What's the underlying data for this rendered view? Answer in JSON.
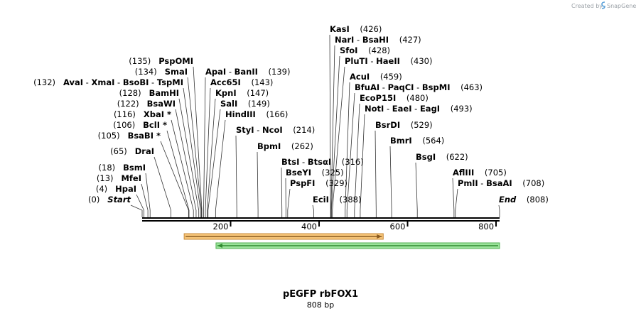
{
  "credit": "Created by",
  "credit_brand": "SnapGene",
  "plasmid": {
    "name": "pEGFP rbFOX1",
    "size_label": "808 bp",
    "length": 808
  },
  "axis_ticks": [
    {
      "value": 200,
      "label": "200"
    },
    {
      "value": 400,
      "label": "400"
    },
    {
      "value": 600,
      "label": "600"
    },
    {
      "value": 800,
      "label": "800"
    }
  ],
  "features": [
    {
      "name": "orange-feature-arrow",
      "start": 95,
      "end": 545,
      "direction": "forward",
      "fill": "#f7c67a",
      "stroke": "#c78a3a",
      "line": "#8a5a1f"
    },
    {
      "name": "green-feature-arrow",
      "start": 167,
      "end": 808,
      "direction": "reverse",
      "fill": "#9be39b",
      "stroke": "#55b055",
      "line": "#2f8a2f"
    }
  ],
  "sites": [
    {
      "pos_label": "(0)",
      "enzymes": [
        "Start"
      ],
      "italic": true,
      "pos": 0
    },
    {
      "pos_label": "(4)",
      "enzymes": [
        "HpaI"
      ],
      "pos": 4
    },
    {
      "pos_label": "(13)",
      "enzymes": [
        "MfeI"
      ],
      "pos": 13
    },
    {
      "pos_label": "(18)",
      "enzymes": [
        "BsmI"
      ],
      "pos": 18
    },
    {
      "pos_label": "(65)",
      "enzymes": [
        "DraI"
      ],
      "pos": 65
    },
    {
      "pos_label": "(105)",
      "enzymes": [
        "BsaBI *"
      ],
      "pos": 105
    },
    {
      "pos_label": "(106)",
      "enzymes": [
        "BclI *"
      ],
      "pos": 106
    },
    {
      "pos_label": "(116)",
      "enzymes": [
        "XbaI *"
      ],
      "pos": 116
    },
    {
      "pos_label": "(122)",
      "enzymes": [
        "BsaWI"
      ],
      "pos": 122
    },
    {
      "pos_label": "(128)",
      "enzymes": [
        "BamHI"
      ],
      "pos": 128
    },
    {
      "pos_label": "(132)",
      "enzymes": [
        "AvaI",
        "XmaI",
        "BsoBI",
        "TspMI"
      ],
      "pos": 132
    },
    {
      "pos_label": "(134)",
      "enzymes": [
        "SmaI"
      ],
      "pos": 134
    },
    {
      "pos_label": "(135)",
      "enzymes": [
        "PspOMI"
      ],
      "pos": 135
    },
    {
      "pos_label": "(139)",
      "enzymes": [
        "ApaI",
        "BanII"
      ],
      "pos": 139
    },
    {
      "pos_label": "(143)",
      "enzymes": [
        "Acc65I"
      ],
      "pos": 143
    },
    {
      "pos_label": "(147)",
      "enzymes": [
        "KpnI"
      ],
      "pos": 147
    },
    {
      "pos_label": "(149)",
      "enzymes": [
        "SalI"
      ],
      "pos": 149
    },
    {
      "pos_label": "(166)",
      "enzymes": [
        "HindIII"
      ],
      "pos": 166
    },
    {
      "pos_label": "(214)",
      "enzymes": [
        "StyI",
        "NcoI"
      ],
      "pos": 214
    },
    {
      "pos_label": "(262)",
      "enzymes": [
        "BpmI"
      ],
      "pos": 262
    },
    {
      "pos_label": "(316)",
      "enzymes": [
        "BtsI",
        "BtsαI"
      ],
      "pos": 316
    },
    {
      "pos_label": "(325)",
      "enzymes": [
        "BseYI"
      ],
      "pos": 325
    },
    {
      "pos_label": "(329)",
      "enzymes": [
        "PspFI"
      ],
      "pos": 329
    },
    {
      "pos_label": "(388)",
      "enzymes": [
        "EciI"
      ],
      "pos": 388
    },
    {
      "pos_label": "(426)",
      "enzymes": [
        "KasI"
      ],
      "pos": 426
    },
    {
      "pos_label": "(427)",
      "enzymes": [
        "NarI",
        "BsaHI"
      ],
      "pos": 427
    },
    {
      "pos_label": "(428)",
      "enzymes": [
        "SfoI"
      ],
      "pos": 428
    },
    {
      "pos_label": "(430)",
      "enzymes": [
        "PluTI",
        "HaeII"
      ],
      "pos": 430
    },
    {
      "pos_label": "(459)",
      "enzymes": [
        "AcuI"
      ],
      "pos": 459
    },
    {
      "pos_label": "(463)",
      "enzymes": [
        "BfuAI",
        "PaqCI",
        "BspMI"
      ],
      "pos": 463
    },
    {
      "pos_label": "(480)",
      "enzymes": [
        "EcoP15I"
      ],
      "pos": 480
    },
    {
      "pos_label": "(493)",
      "enzymes": [
        "NotI",
        "EaeI",
        "EagI"
      ],
      "pos": 493
    },
    {
      "pos_label": "(529)",
      "enzymes": [
        "BsrDI"
      ],
      "pos": 529
    },
    {
      "pos_label": "(564)",
      "enzymes": [
        "BmrI"
      ],
      "pos": 564
    },
    {
      "pos_label": "(622)",
      "enzymes": [
        "BsgI"
      ],
      "pos": 622
    },
    {
      "pos_label": "(705)",
      "enzymes": [
        "AflIII"
      ],
      "pos": 705
    },
    {
      "pos_label": "(708)",
      "enzymes": [
        "PmlI",
        "BsaAI"
      ],
      "pos": 708
    },
    {
      "pos_label": "(808)",
      "enzymes": [
        "End"
      ],
      "italic": true,
      "pos": 808
    }
  ]
}
